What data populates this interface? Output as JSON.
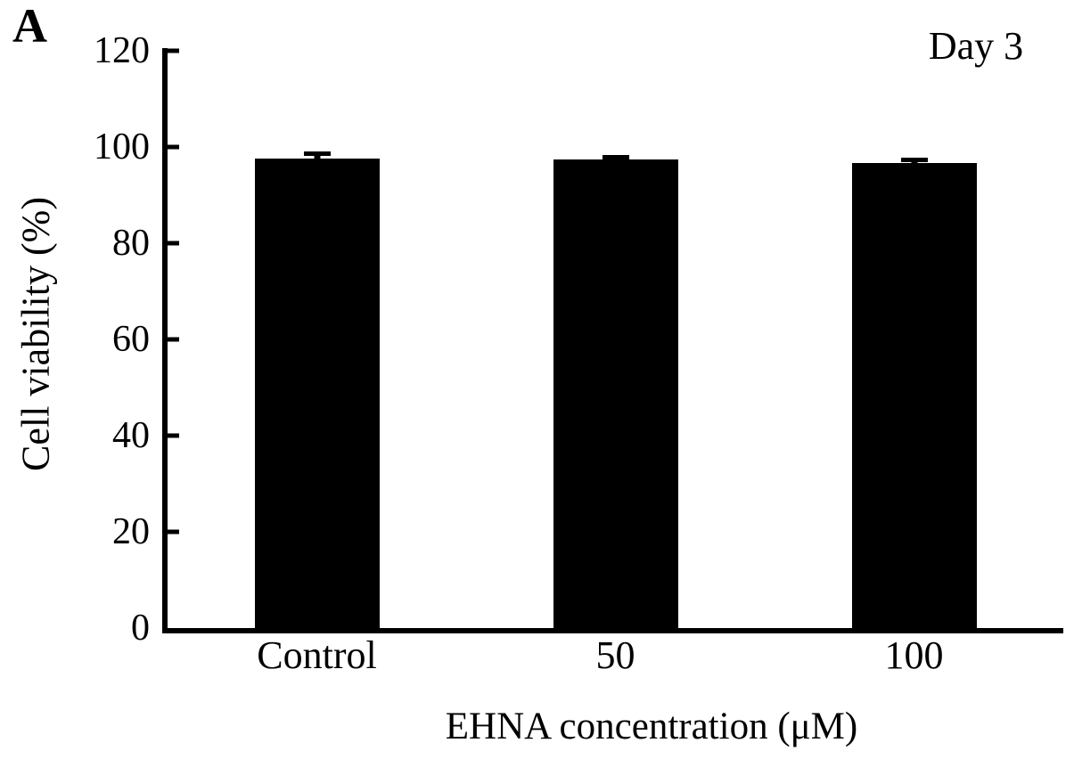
{
  "figure": {
    "panel_label": "A"
  },
  "chart_data": {
    "type": "bar",
    "title": "",
    "annotation": "Day 3",
    "categories": [
      "Control",
      "50",
      "100"
    ],
    "values": [
      97.6,
      97.4,
      96.6
    ],
    "errors": [
      1.5,
      0.9,
      1.2
    ],
    "xlabel": "EHNA concentration (μM)",
    "ylabel": "Cell viability (%)",
    "ylim": [
      0,
      120
    ],
    "yticks": [
      0,
      20,
      40,
      60,
      80,
      100,
      120
    ],
    "bar_color": "#000000",
    "axis_color": "#000000",
    "background_color": "#ffffff",
    "grid": false,
    "legend": false,
    "error_bars": true
  }
}
